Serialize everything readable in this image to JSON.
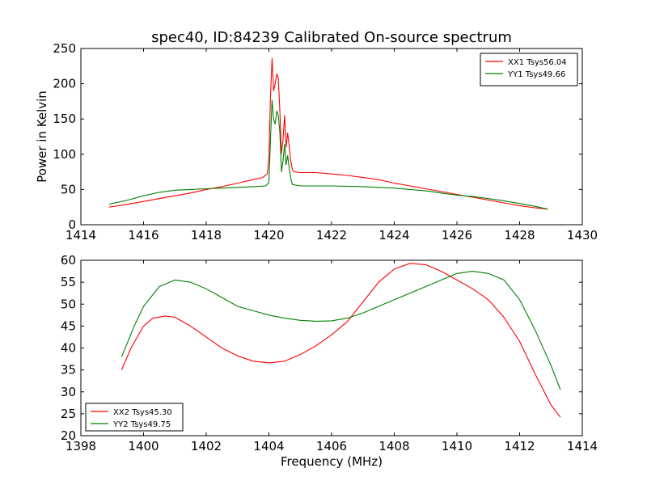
{
  "chart_data": [
    {
      "type": "line",
      "title": "spec40, ID:84239 Calibrated On-source spectrum",
      "xlabel": "",
      "ylabel": "Power in Kelvin",
      "xlim": [
        1414,
        1430
      ],
      "ylim": [
        0,
        250
      ],
      "xticks": [
        1414,
        1416,
        1418,
        1420,
        1422,
        1424,
        1426,
        1428,
        1430
      ],
      "yticks": [
        0,
        50,
        100,
        150,
        200,
        250
      ],
      "grid": false,
      "legend_position": "top-right",
      "series": [
        {
          "name": "XX1 Tsys56.04",
          "color": "#ff0000",
          "points": [
            [
              1414.9,
              25
            ],
            [
              1415.5,
              29
            ],
            [
              1416.0,
              33
            ],
            [
              1416.5,
              37
            ],
            [
              1417.0,
              41
            ],
            [
              1417.5,
              45
            ],
            [
              1418.0,
              50
            ],
            [
              1418.5,
              54
            ],
            [
              1419.0,
              59
            ],
            [
              1419.5,
              64
            ],
            [
              1419.8,
              67
            ],
            [
              1419.95,
              72
            ],
            [
              1420.0,
              95
            ],
            [
              1420.05,
              180
            ],
            [
              1420.1,
              236
            ],
            [
              1420.15,
              190
            ],
            [
              1420.2,
              200
            ],
            [
              1420.25,
              214
            ],
            [
              1420.3,
              208
            ],
            [
              1420.35,
              160
            ],
            [
              1420.4,
              101
            ],
            [
              1420.45,
              120
            ],
            [
              1420.5,
              155
            ],
            [
              1420.55,
              110
            ],
            [
              1420.6,
              130
            ],
            [
              1420.65,
              110
            ],
            [
              1420.7,
              90
            ],
            [
              1420.75,
              78
            ],
            [
              1420.8,
              75
            ],
            [
              1421.0,
              74
            ],
            [
              1421.5,
              74
            ],
            [
              1422.0,
              72
            ],
            [
              1422.5,
              70
            ],
            [
              1423.0,
              67
            ],
            [
              1423.5,
              64
            ],
            [
              1424.0,
              59
            ],
            [
              1424.5,
              55
            ],
            [
              1425.0,
              51
            ],
            [
              1425.5,
              47
            ],
            [
              1426.0,
              43
            ],
            [
              1426.5,
              39
            ],
            [
              1427.0,
              35
            ],
            [
              1427.5,
              31
            ],
            [
              1428.0,
              27
            ],
            [
              1428.5,
              24
            ],
            [
              1428.9,
              22
            ]
          ]
        },
        {
          "name": "YY1 Tsys49.66",
          "color": "#008000",
          "points": [
            [
              1414.9,
              29
            ],
            [
              1415.5,
              35
            ],
            [
              1416.0,
              41
            ],
            [
              1416.5,
              46
            ],
            [
              1417.0,
              49
            ],
            [
              1417.5,
              50
            ],
            [
              1418.0,
              51
            ],
            [
              1418.5,
              52
            ],
            [
              1419.0,
              53
            ],
            [
              1419.5,
              54
            ],
            [
              1419.9,
              55
            ],
            [
              1420.0,
              60
            ],
            [
              1420.05,
              120
            ],
            [
              1420.1,
              177
            ],
            [
              1420.15,
              150
            ],
            [
              1420.2,
              143
            ],
            [
              1420.25,
              161
            ],
            [
              1420.3,
              155
            ],
            [
              1420.35,
              130
            ],
            [
              1420.4,
              75
            ],
            [
              1420.45,
              90
            ],
            [
              1420.5,
              114
            ],
            [
              1420.55,
              85
            ],
            [
              1420.6,
              98
            ],
            [
              1420.65,
              80
            ],
            [
              1420.7,
              65
            ],
            [
              1420.75,
              57
            ],
            [
              1421.0,
              55
            ],
            [
              1422.0,
              55
            ],
            [
              1423.0,
              54
            ],
            [
              1424.0,
              52
            ],
            [
              1424.5,
              50
            ],
            [
              1425.0,
              48
            ],
            [
              1425.5,
              45
            ],
            [
              1426.0,
              42
            ],
            [
              1426.5,
              40
            ],
            [
              1427.0,
              37
            ],
            [
              1427.5,
              34
            ],
            [
              1428.0,
              30
            ],
            [
              1428.5,
              26
            ],
            [
              1428.9,
              22
            ]
          ]
        }
      ]
    },
    {
      "type": "line",
      "title": "",
      "xlabel": "Frequency (MHz)",
      "ylabel": "",
      "xlim": [
        1398,
        1414
      ],
      "ylim": [
        20,
        60
      ],
      "xticks": [
        1398,
        1400,
        1402,
        1404,
        1406,
        1408,
        1410,
        1412,
        1414
      ],
      "yticks": [
        20,
        25,
        30,
        35,
        40,
        45,
        50,
        55,
        60
      ],
      "grid": false,
      "legend_position": "bottom-left",
      "series": [
        {
          "name": "XX2 Tsys45.30",
          "color": "#ff0000",
          "points": [
            [
              1399.3,
              35
            ],
            [
              1399.6,
              40
            ],
            [
              1400.0,
              45
            ],
            [
              1400.3,
              46.8
            ],
            [
              1400.7,
              47.3
            ],
            [
              1401.0,
              47
            ],
            [
              1401.5,
              45
            ],
            [
              1402.0,
              42.5
            ],
            [
              1402.5,
              40
            ],
            [
              1403.0,
              38.2
            ],
            [
              1403.5,
              37
            ],
            [
              1404.0,
              36.6
            ],
            [
              1404.5,
              37
            ],
            [
              1405.0,
              38.5
            ],
            [
              1405.5,
              40.5
            ],
            [
              1406.0,
              43
            ],
            [
              1406.5,
              46
            ],
            [
              1407.0,
              50.5
            ],
            [
              1407.5,
              55
            ],
            [
              1408.0,
              58
            ],
            [
              1408.5,
              59.3
            ],
            [
              1409.0,
              59
            ],
            [
              1409.5,
              57.5
            ],
            [
              1410.0,
              55.5
            ],
            [
              1410.5,
              53.5
            ],
            [
              1411.0,
              51
            ],
            [
              1411.5,
              47
            ],
            [
              1412.0,
              41.5
            ],
            [
              1412.5,
              34
            ],
            [
              1413.0,
              27
            ],
            [
              1413.3,
              24.2
            ]
          ]
        },
        {
          "name": "YY2 Tsys49.75",
          "color": "#008000",
          "points": [
            [
              1399.3,
              38
            ],
            [
              1399.7,
              45
            ],
            [
              1400.0,
              49.5
            ],
            [
              1400.5,
              54
            ],
            [
              1401.0,
              55.5
            ],
            [
              1401.5,
              55
            ],
            [
              1402.0,
              53.5
            ],
            [
              1402.5,
              51.5
            ],
            [
              1403.0,
              49.5
            ],
            [
              1403.5,
              48.5
            ],
            [
              1404.0,
              47.5
            ],
            [
              1404.5,
              46.8
            ],
            [
              1405.0,
              46.3
            ],
            [
              1405.5,
              46.1
            ],
            [
              1406.0,
              46.2
            ],
            [
              1406.5,
              46.8
            ],
            [
              1407.0,
              48
            ],
            [
              1407.5,
              49.5
            ],
            [
              1408.0,
              51
            ],
            [
              1408.5,
              52.5
            ],
            [
              1409.0,
              54
            ],
            [
              1409.5,
              55.5
            ],
            [
              1410.0,
              57
            ],
            [
              1410.5,
              57.5
            ],
            [
              1411.0,
              57
            ],
            [
              1411.5,
              55.5
            ],
            [
              1412.0,
              51
            ],
            [
              1412.5,
              44
            ],
            [
              1413.0,
              36
            ],
            [
              1413.3,
              30.5
            ]
          ]
        }
      ]
    }
  ]
}
